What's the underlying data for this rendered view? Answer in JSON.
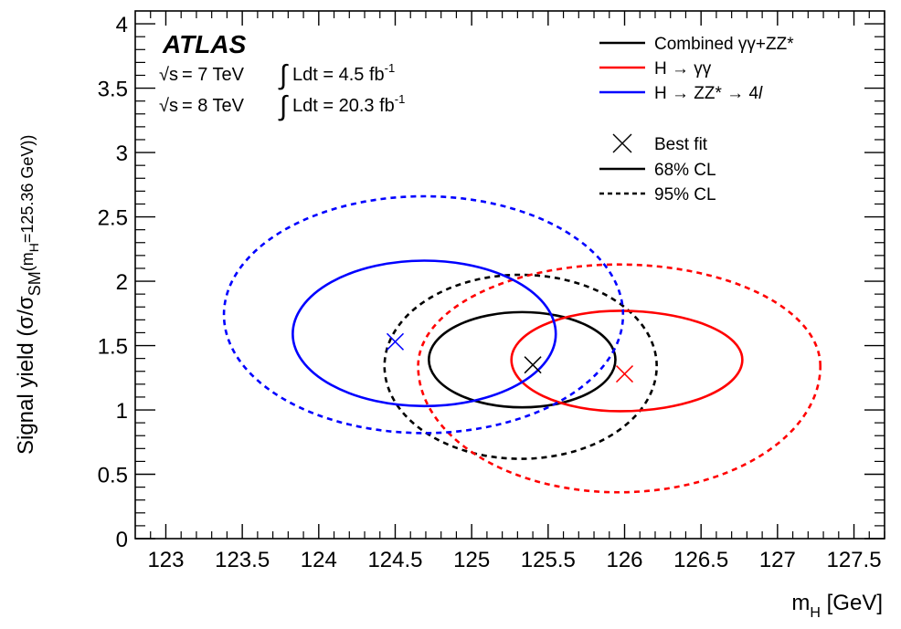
{
  "chart_data": {
    "type": "contour",
    "experiment": "ATLAS",
    "energy_lines": [
      {
        "sqrt": "√s",
        "energy": "= 7 TeV",
        "lumi_prefix": "Ldt = 4.5 fb",
        "lumi_exp": "-1"
      },
      {
        "sqrt": "√s",
        "energy": "= 8 TeV",
        "lumi_prefix": "Ldt = 20.3 fb",
        "lumi_exp": "-1"
      }
    ],
    "xlabel": {
      "base": "m",
      "sub": "H",
      "rest": " [GeV]"
    },
    "ylabel": {
      "p1": "Signal yield (σ/σ",
      "sub1": "SM",
      "p2": "(m",
      "sub2": "H",
      "p3": "=125.36 GeV))"
    },
    "xlim": [
      122.8,
      127.7
    ],
    "ylim": [
      0,
      4.1
    ],
    "xticks": [
      {
        "v": 123,
        "label": "123"
      },
      {
        "v": 123.5,
        "label": "123.5"
      },
      {
        "v": 124,
        "label": "124"
      },
      {
        "v": 124.5,
        "label": "124.5"
      },
      {
        "v": 125,
        "label": "125"
      },
      {
        "v": 125.5,
        "label": "125.5"
      },
      {
        "v": 126,
        "label": "126"
      },
      {
        "v": 126.5,
        "label": "126.5"
      },
      {
        "v": 127,
        "label": "127"
      },
      {
        "v": 127.5,
        "label": "127.5"
      }
    ],
    "yticks": [
      {
        "v": 0,
        "label": "0"
      },
      {
        "v": 0.5,
        "label": "0.5"
      },
      {
        "v": 1,
        "label": "1"
      },
      {
        "v": 1.5,
        "label": "1.5"
      },
      {
        "v": 2,
        "label": "2"
      },
      {
        "v": 2.5,
        "label": "2.5"
      },
      {
        "v": 3,
        "label": "3"
      },
      {
        "v": 3.5,
        "label": "3.5"
      },
      {
        "v": 4,
        "label": "4"
      }
    ],
    "legend": {
      "placement": "top-right",
      "entries": [
        {
          "label": "Combined γγ+ZZ*",
          "color": "#000000",
          "style": "solid"
        },
        {
          "label": "H → γγ",
          "color": "#ff0000",
          "style": "solid"
        },
        {
          "label": "H → ZZ* → 4",
          "italic_suffix": "l",
          "color": "#0000ff",
          "style": "solid"
        },
        {
          "label": "Best fit",
          "color": "#000000",
          "style": "marker"
        },
        {
          "label": "68% CL",
          "color": "#000000",
          "style": "solid"
        },
        {
          "label": "95% CL",
          "color": "#000000",
          "style": "dashed"
        }
      ]
    },
    "series": [
      {
        "name": "Combined γγ+ZZ*",
        "color": "#000000",
        "best_fit": {
          "x": 125.4,
          "y": 1.35
        },
        "cl68": {
          "cx": 125.33,
          "cy": 1.39,
          "x_min": 124.72,
          "x_max": 125.94,
          "y_min": 1.02,
          "y_max": 1.76
        },
        "cl95": {
          "cx": 125.32,
          "cy": 1.34,
          "x_min": 124.43,
          "x_max": 126.21,
          "y_min": 0.62,
          "y_max": 2.05
        }
      },
      {
        "name": "H → γγ",
        "color": "#ff0000",
        "best_fit": {
          "x": 126.0,
          "y": 1.28
        },
        "cl68": {
          "cx": 125.97,
          "cy": 1.39,
          "x_min": 125.26,
          "x_max": 126.77,
          "y_min": 0.99,
          "y_max": 1.77
        },
        "cl95": {
          "cx": 125.96,
          "cy": 1.34,
          "x_min": 124.65,
          "x_max": 127.28,
          "y_min": 0.36,
          "y_max": 2.13
        }
      },
      {
        "name": "H → ZZ* → 4l",
        "color": "#0000ff",
        "best_fit": {
          "x": 124.5,
          "y": 1.53
        },
        "cl68": {
          "cx": 124.69,
          "cy": 1.59,
          "x_min": 123.83,
          "x_max": 125.55,
          "y_min": 1.03,
          "y_max": 2.16
        },
        "cl95": {
          "cx": 124.69,
          "cy": 1.74,
          "x_min": 123.38,
          "x_max": 125.99,
          "y_min": 0.82,
          "y_max": 2.66
        }
      }
    ]
  }
}
